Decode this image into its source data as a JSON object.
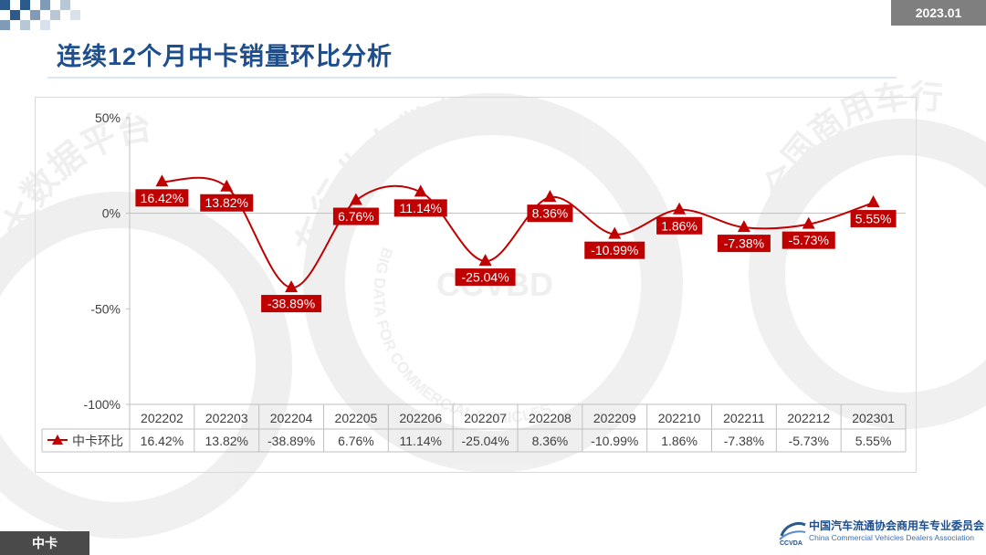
{
  "header": {
    "date": "2023.01",
    "title": "连续12个月中卡销量环比分析"
  },
  "footer": {
    "tab_label": "中卡",
    "org_cn": "中国汽车流通协会商用车专业委员会",
    "org_en": "China Commercial Vehicles Dealers Association",
    "logo_text": "CCVDA"
  },
  "watermark": {
    "arc_top": "车行业大数据平台",
    "arc_left": "业大数据平台",
    "arc_center": "CCVBD",
    "arc_english": "BIG DATA FOR COMMERCIAL VEHICLES",
    "arc_right": "全国商用车行"
  },
  "chart_data": {
    "type": "line",
    "categories": [
      "202202",
      "202203",
      "202204",
      "202205",
      "202206",
      "202207",
      "202208",
      "202209",
      "202210",
      "202211",
      "202212",
      "202301"
    ],
    "series": [
      {
        "name": "中卡环比",
        "values": [
          16.42,
          13.82,
          -38.89,
          6.76,
          11.14,
          -25.04,
          8.36,
          -10.99,
          1.86,
          -7.38,
          -5.73,
          5.55
        ],
        "labels": [
          "16.42%",
          "13.82%",
          "-38.89%",
          "6.76%",
          "11.14%",
          "-25.04%",
          "8.36%",
          "-10.99%",
          "1.86%",
          "-7.38%",
          "-5.73%",
          "5.55%"
        ],
        "color": "#c00000"
      }
    ],
    "ylim": [
      -100,
      50
    ],
    "yticks": [
      50,
      0,
      -50,
      -100
    ],
    "ytick_labels": [
      "50%",
      "0%",
      "-50%",
      "-100%"
    ],
    "grid": false,
    "data_table": true,
    "legend": "data table left"
  }
}
